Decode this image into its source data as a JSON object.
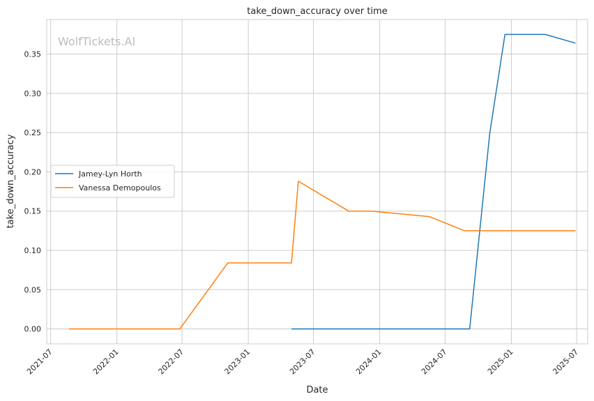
{
  "chart_data": {
    "type": "line",
    "title": "take_down_accuracy over time",
    "xlabel": "Date",
    "ylabel": "take_down_accuracy",
    "watermark": "WolfTickets.AI",
    "grid": true,
    "legend_position": "center-left",
    "x_range": [
      "2021-06-20",
      "2025-08-01"
    ],
    "ylim": [
      -0.019,
      0.394
    ],
    "x_ticks": [
      "2021-07",
      "2022-01",
      "2022-07",
      "2023-01",
      "2023-07",
      "2024-01",
      "2024-07",
      "2025-01",
      "2025-07"
    ],
    "y_ticks": [
      "0.00",
      "0.05",
      "0.10",
      "0.15",
      "0.20",
      "0.25",
      "0.30",
      "0.35"
    ],
    "series": [
      {
        "name": "Jamey-Lyn Horth",
        "color": "#1f77b4",
        "points": [
          {
            "x": "2023-05-01",
            "y": 0.0
          },
          {
            "x": "2024-09-07",
            "y": 0.0
          },
          {
            "x": "2024-11-02",
            "y": 0.25
          },
          {
            "x": "2024-12-14",
            "y": 0.375
          },
          {
            "x": "2025-04-05",
            "y": 0.375
          },
          {
            "x": "2025-06-28",
            "y": 0.364
          }
        ]
      },
      {
        "name": "Vanessa Demopoulos",
        "color": "#ff7f0e",
        "points": [
          {
            "x": "2021-08-21",
            "y": 0.0
          },
          {
            "x": "2022-06-25",
            "y": 0.0
          },
          {
            "x": "2022-11-05",
            "y": 0.084
          },
          {
            "x": "2023-05-01",
            "y": 0.084
          },
          {
            "x": "2023-05-20",
            "y": 0.188
          },
          {
            "x": "2023-10-07",
            "y": 0.15
          },
          {
            "x": "2023-12-09",
            "y": 0.15
          },
          {
            "x": "2024-05-18",
            "y": 0.143
          },
          {
            "x": "2024-08-24",
            "y": 0.125
          },
          {
            "x": "2025-06-28",
            "y": 0.125
          }
        ]
      }
    ]
  }
}
